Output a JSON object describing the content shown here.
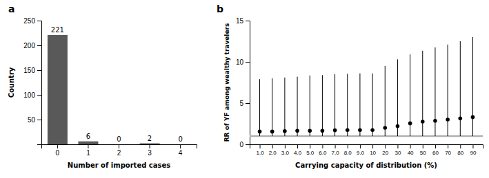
{
  "chart_data": [
    {
      "type": "bar",
      "title": "a",
      "categories": [
        "0",
        "1",
        "2",
        "3",
        "4"
      ],
      "values": [
        221,
        6,
        0,
        2,
        0
      ],
      "color": "#595959",
      "xlabel": "Number of imported cases",
      "ylabel": "Country",
      "ylim": [
        0,
        250
      ],
      "yticks": [
        50,
        100,
        150,
        200,
        250
      ],
      "data_labels": true
    },
    {
      "type": "scatter",
      "title": "b",
      "categories": [
        "1.0",
        "2.0",
        "3.0",
        "4.0",
        "5.0",
        "6.0",
        "7.0",
        "8.0",
        "9.0",
        "10",
        "20",
        "30",
        "40",
        "50",
        "60",
        "70",
        "80",
        "90"
      ],
      "values": [
        1.55,
        1.55,
        1.6,
        1.65,
        1.65,
        1.65,
        1.7,
        1.72,
        1.72,
        1.72,
        2.0,
        2.2,
        2.55,
        2.75,
        2.85,
        3.0,
        3.15,
        3.3
      ],
      "lower": [
        1.0,
        1.0,
        1.0,
        1.0,
        1.0,
        1.0,
        1.0,
        1.0,
        1.0,
        1.0,
        1.0,
        1.0,
        1.0,
        1.0,
        1.0,
        1.0,
        1.0,
        1.0
      ],
      "upper": [
        7.9,
        8.0,
        8.1,
        8.2,
        8.35,
        8.4,
        8.5,
        8.55,
        8.6,
        8.6,
        9.5,
        10.3,
        10.9,
        11.35,
        11.75,
        12.1,
        12.5,
        13.0
      ],
      "color": "black",
      "reference_line": {
        "value": 1.0,
        "color": "#b0b0b0"
      },
      "xlabel": "Carrying capacity of distribution (%)",
      "ylabel": "RR of YF among wealthy travelers",
      "ylim": [
        0,
        15
      ],
      "yticks": [
        0,
        5,
        10,
        15
      ]
    }
  ]
}
